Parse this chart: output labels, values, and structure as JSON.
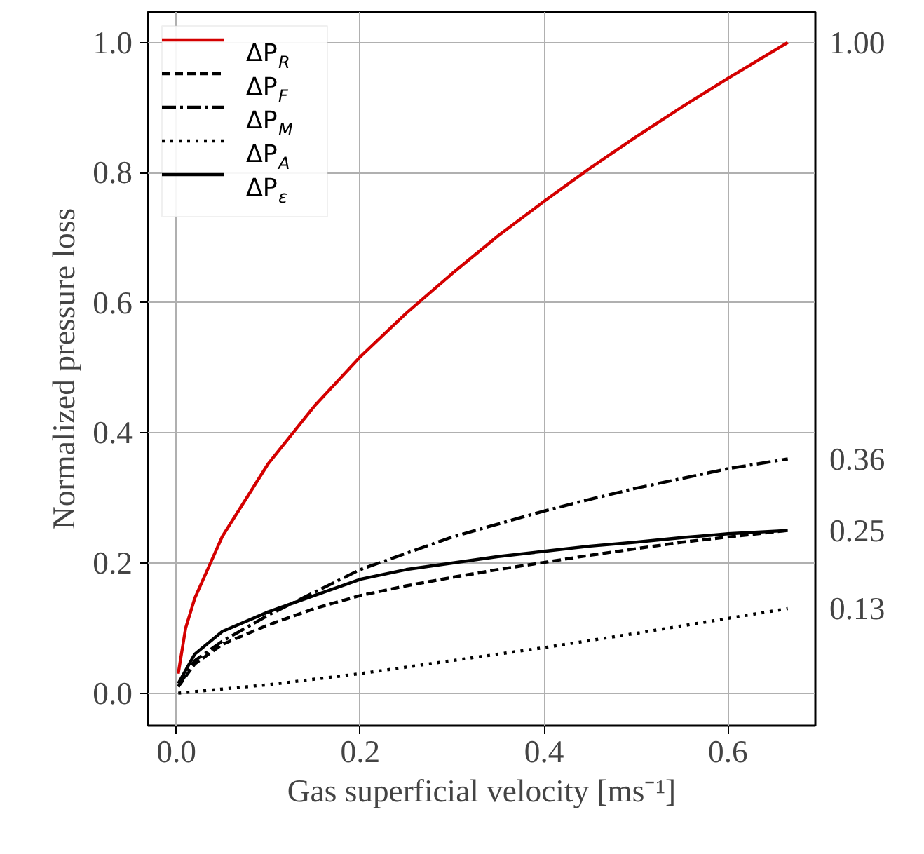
{
  "chart_data": {
    "type": "line",
    "xlabel": "Gas superficial velocity [ms⁻¹]",
    "ylabel": "Normalized pressure loss",
    "xlim": [
      -0.031,
      0.695
    ],
    "ylim": [
      -0.05,
      1.047
    ],
    "xticks": [
      {
        "value": 0,
        "label": "0.0"
      },
      0.2,
      0.4,
      0.6
    ],
    "yticks": [
      {
        "value": 0,
        "label": "0.0"
      },
      0.2,
      0.4,
      0.6,
      0.8,
      {
        "value": 1,
        "label": "1.0"
      }
    ],
    "grid": true,
    "legend": "top left",
    "series": [
      {
        "name": "ΔP$_{R}$",
        "color": "#d40000",
        "line_style": "solid",
        "x": [
          0.002,
          0.01,
          0.02,
          0.05,
          0.1,
          0.15,
          0.2,
          0.25,
          0.3,
          0.35,
          0.4,
          0.45,
          0.5,
          0.55,
          0.6,
          0.665
        ],
        "values": [
          0.03,
          0.1,
          0.146,
          0.241,
          0.353,
          0.441,
          0.517,
          0.584,
          0.645,
          0.703,
          0.756,
          0.807,
          0.855,
          0.901,
          0.945,
          1.0
        ],
        "value_labels": [
          null,
          null,
          null,
          null,
          null,
          null,
          null,
          null,
          null,
          null,
          null,
          null,
          null,
          null,
          null,
          "1.00"
        ]
      },
      {
        "name": "ΔP$_{F}$",
        "color": "#000000",
        "line_style": "dashed",
        "x": [
          0.002,
          0.02,
          0.05,
          0.1,
          0.15,
          0.2,
          0.25,
          0.3,
          0.35,
          0.4,
          0.45,
          0.5,
          0.55,
          0.6,
          0.665
        ],
        "values": [
          0.01,
          0.045,
          0.075,
          0.105,
          0.13,
          0.15,
          0.165,
          0.178,
          0.19,
          0.201,
          0.212,
          0.222,
          0.232,
          0.24,
          0.25
        ]
      },
      {
        "name": "ΔP$_{M}$",
        "color": "#000000",
        "line_style": "dashdot",
        "x": [
          0.002,
          0.02,
          0.05,
          0.1,
          0.15,
          0.2,
          0.25,
          0.3,
          0.35,
          0.4,
          0.45,
          0.5,
          0.55,
          0.6,
          0.665
        ],
        "values": [
          0.01,
          0.05,
          0.08,
          0.12,
          0.155,
          0.19,
          0.215,
          0.24,
          0.26,
          0.28,
          0.298,
          0.315,
          0.33,
          0.345,
          0.36
        ],
        "value_labels": [
          null,
          null,
          null,
          null,
          null,
          null,
          null,
          null,
          null,
          null,
          null,
          null,
          null,
          null,
          "0.36"
        ]
      },
      {
        "name": "ΔP$_{A}$",
        "color": "#000000",
        "line_style": "dotted",
        "x": [
          0.002,
          0.1,
          0.2,
          0.3,
          0.4,
          0.5,
          0.6,
          0.665
        ],
        "values": [
          0.0,
          0.013,
          0.03,
          0.05,
          0.07,
          0.092,
          0.115,
          0.13
        ],
        "value_labels": [
          null,
          null,
          null,
          null,
          null,
          null,
          null,
          "0.13"
        ]
      },
      {
        "name": "ΔP$_{ε}$",
        "color": "#000000",
        "line_style": "solid",
        "x": [
          0.002,
          0.02,
          0.05,
          0.1,
          0.15,
          0.2,
          0.25,
          0.3,
          0.35,
          0.4,
          0.45,
          0.5,
          0.55,
          0.6,
          0.665
        ],
        "values": [
          0.015,
          0.06,
          0.095,
          0.125,
          0.15,
          0.175,
          0.19,
          0.2,
          0.21,
          0.218,
          0.226,
          0.232,
          0.239,
          0.245,
          0.25
        ],
        "value_labels": [
          null,
          null,
          null,
          null,
          null,
          null,
          null,
          null,
          null,
          null,
          null,
          null,
          null,
          null,
          "0.25"
        ]
      }
    ]
  }
}
